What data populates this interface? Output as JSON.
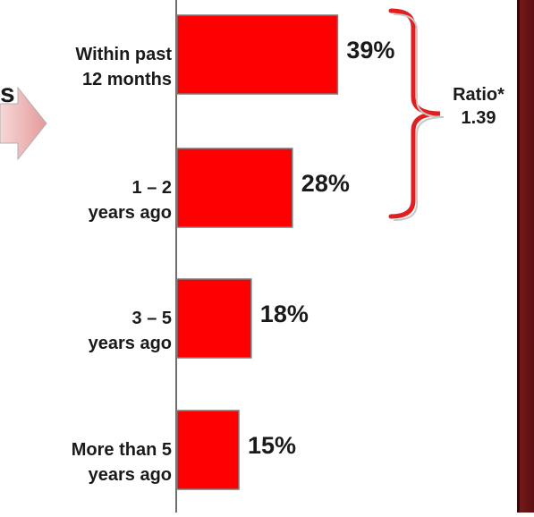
{
  "chart_data": {
    "type": "bar",
    "orientation": "horizontal",
    "categories": [
      "Within past\n12 months",
      "1 – 2\nyears ago",
      "3 – 5\nyears ago",
      "More than 5\nyears ago"
    ],
    "values": [
      39,
      28,
      18,
      15
    ],
    "value_labels": [
      "39%",
      "28%",
      "18%",
      "15%"
    ],
    "bar_color": "#ff0000",
    "xlim": [
      0,
      100
    ],
    "annotation": {
      "label": "Ratio*",
      "value": "1.39",
      "brackets_categories": [
        0,
        1
      ],
      "bracket_color": "#e02020"
    }
  },
  "partial_text": "s",
  "colors": {
    "arrow": "#e8a6a6",
    "right_band": "#6b1419"
  }
}
